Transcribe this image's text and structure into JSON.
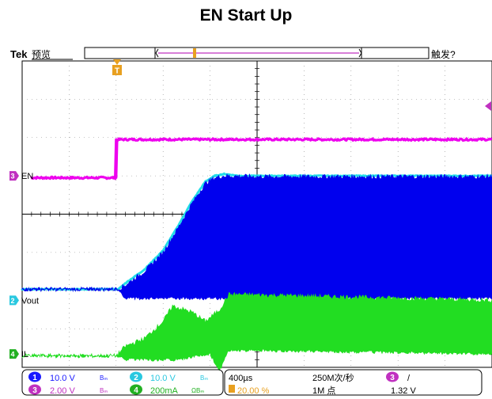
{
  "title": "EN Start Up",
  "header": {
    "brand": "Tek",
    "mode": "预览",
    "trigger_status": "触发?"
  },
  "markers": {
    "trigger_marker": "T"
  },
  "channels": [
    {
      "num": "1",
      "color": "#1a1aff",
      "scale": "10.0 V",
      "coupling": "Bₘ"
    },
    {
      "num": "2",
      "color": "#29c8e0",
      "scale": "10.0 V",
      "coupling": "Bₘ"
    },
    {
      "num": "3",
      "color": "#c030c0",
      "scale": "2.00 V",
      "coupling": "Bₘ"
    },
    {
      "num": "4",
      "color": "#22b022",
      "scale": "200mA",
      "coupling": "ΩBₘ"
    }
  ],
  "timebase": {
    "scale": "400µs",
    "position": "20.00 %"
  },
  "acquisition": {
    "rate": "250M次/秒",
    "points": "1M 点"
  },
  "trigger": {
    "source": "3",
    "slope": "/",
    "level": "1.32 V"
  },
  "chart_data": {
    "type": "line",
    "title": "EN Start Up",
    "xlabel": "",
    "ylabel": "",
    "grid": true,
    "x_divisions": 10,
    "y_divisions": 8,
    "x_unit": "div",
    "y_unit": "div",
    "xlim": [
      0,
      10
    ],
    "ylim": [
      0,
      8
    ],
    "series": [
      {
        "name": "EN",
        "channel": "3",
        "color": "#ee00ee",
        "x": [
          0.2,
          2.0,
          2.0,
          10.0
        ],
        "y": [
          4.95,
          4.95,
          5.95,
          5.95
        ],
        "noise": 0.05
      },
      {
        "name": "Vout",
        "channel": "2",
        "color": "#22dde8",
        "x": [
          0.0,
          2.05,
          2.2,
          2.6,
          3.0,
          3.3,
          3.6,
          3.9,
          4.1,
          4.3,
          4.6,
          5.0,
          10.0
        ],
        "y": [
          2.04,
          2.04,
          2.2,
          2.55,
          3.05,
          3.65,
          4.3,
          4.85,
          5.0,
          5.05,
          5.0,
          5.0,
          5.0
        ],
        "noise": 0.02
      },
      {
        "name": "Vout (fill)",
        "channel": "2",
        "color": "#0000ee",
        "band_low": [
          [
            0.0,
            2.04
          ],
          [
            2.05,
            2.04
          ],
          [
            2.2,
            1.8
          ],
          [
            10.0,
            1.8
          ]
        ],
        "band_high": [
          [
            0.0,
            2.04
          ],
          [
            2.05,
            2.04
          ],
          [
            2.2,
            2.15
          ],
          [
            2.6,
            2.5
          ],
          [
            3.0,
            3.0
          ],
          [
            3.3,
            3.6
          ],
          [
            3.6,
            4.25
          ],
          [
            3.9,
            4.8
          ],
          [
            4.1,
            4.95
          ],
          [
            4.3,
            5.0
          ],
          [
            5.0,
            4.98
          ],
          [
            10.0,
            4.98
          ]
        ]
      },
      {
        "name": "IL",
        "channel": "4",
        "color": "#22dd22",
        "band_low": [
          [
            0.0,
            0.3
          ],
          [
            2.0,
            0.3
          ],
          [
            2.2,
            0.2
          ],
          [
            3.3,
            0.2
          ],
          [
            4.0,
            0.35
          ],
          [
            4.2,
            -0.1
          ],
          [
            4.4,
            0.45
          ],
          [
            10.0,
            0.35
          ]
        ],
        "band_high": [
          [
            0.0,
            0.3
          ],
          [
            2.0,
            0.3
          ],
          [
            2.2,
            0.55
          ],
          [
            2.6,
            0.75
          ],
          [
            3.0,
            1.2
          ],
          [
            3.2,
            1.6
          ],
          [
            3.6,
            1.45
          ],
          [
            3.9,
            1.2
          ],
          [
            4.2,
            1.5
          ],
          [
            4.4,
            1.9
          ],
          [
            4.6,
            1.9
          ],
          [
            10.0,
            1.75
          ]
        ]
      }
    ],
    "channel_labels": [
      {
        "channel": "3",
        "text": "EN",
        "color": "#c030c0",
        "y": 5.0
      },
      {
        "channel": "2",
        "text": "Vout",
        "color": "#29c8e0",
        "y": 1.75
      },
      {
        "channel": "4",
        "text": "IL",
        "color": "#22b022",
        "y": 0.35
      }
    ]
  }
}
